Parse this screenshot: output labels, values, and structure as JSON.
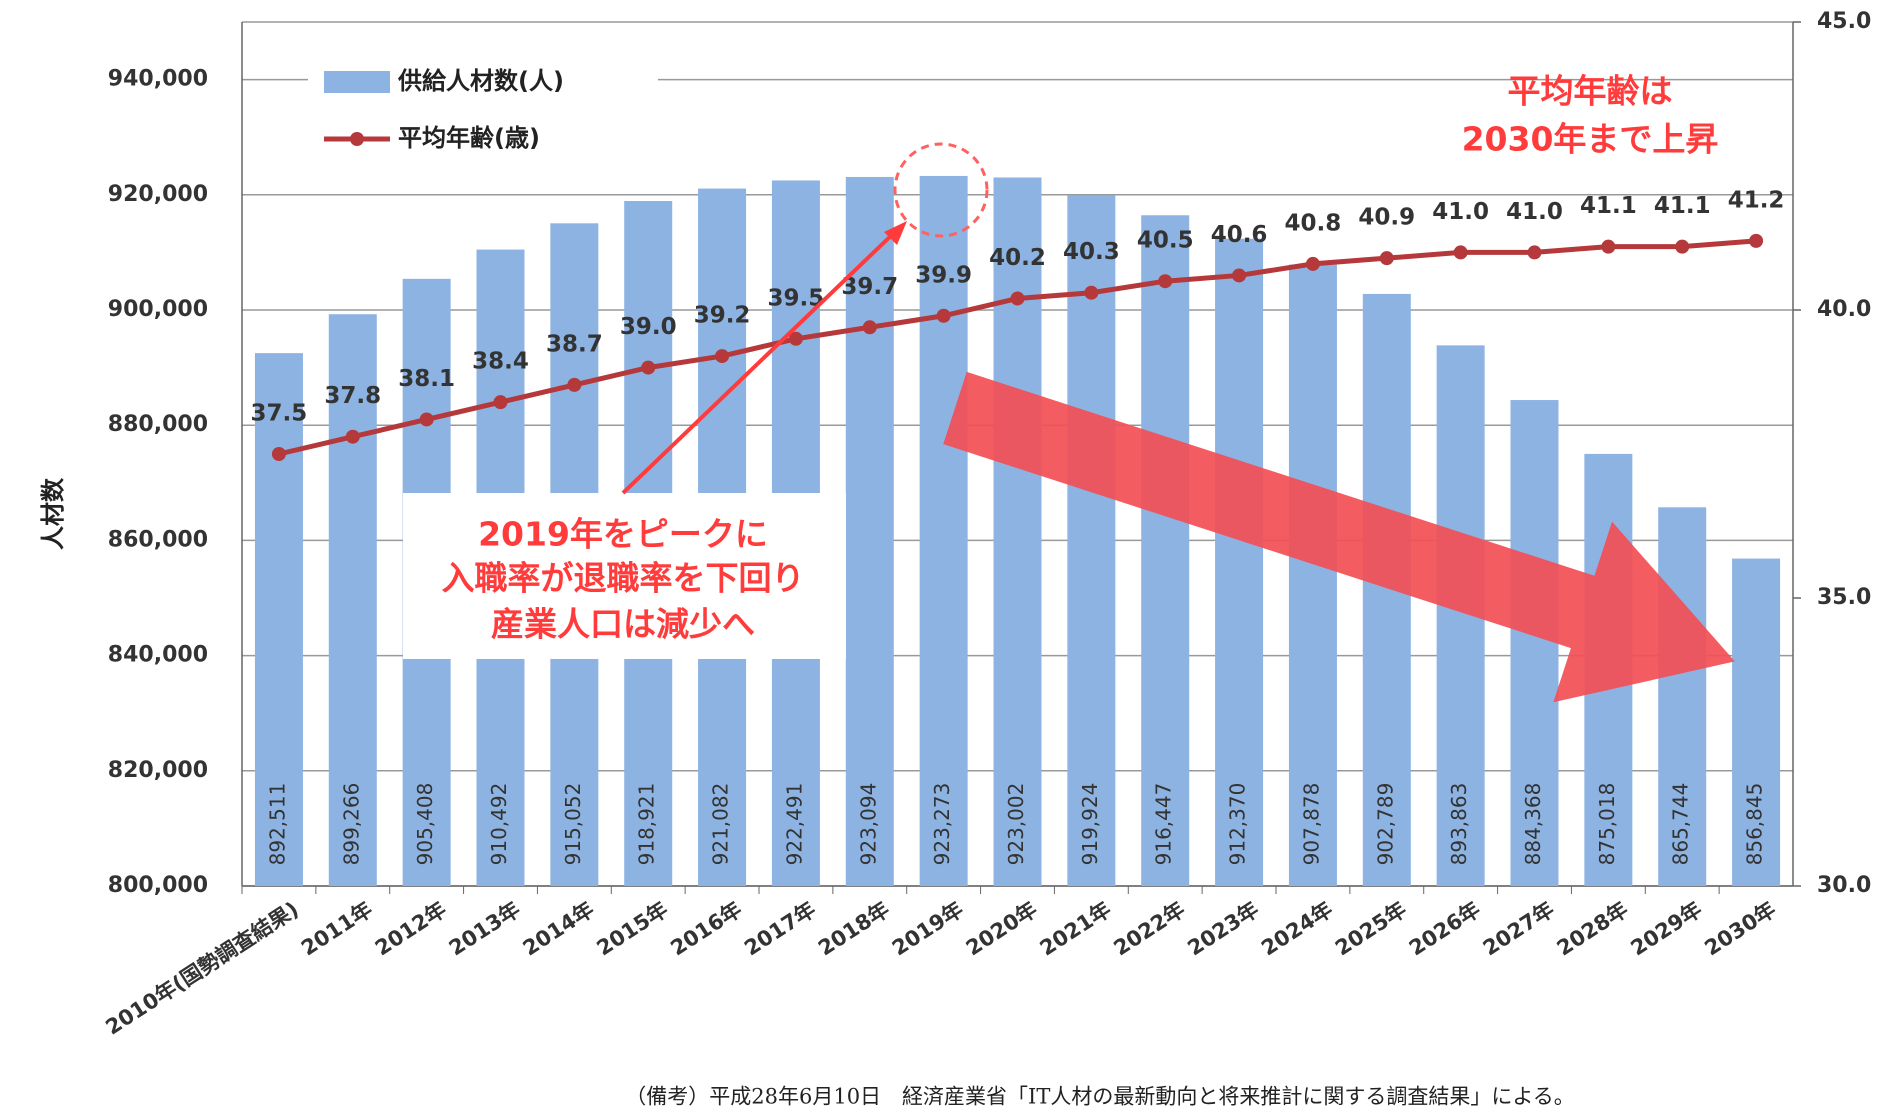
{
  "chart_data": {
    "type": "bar-line",
    "y_label": "人材数",
    "categories": [
      "2010年(国勢調査結果)",
      "2011年",
      "2012年",
      "2013年",
      "2014年",
      "2015年",
      "2016年",
      "2017年",
      "2018年",
      "2019年",
      "2020年",
      "2021年",
      "2022年",
      "2023年",
      "2024年",
      "2025年",
      "2026年",
      "2027年",
      "2028年",
      "2029年",
      "2030年"
    ],
    "series": [
      {
        "name": "供給人材数(人)",
        "type": "bar",
        "color": "#8db3e2",
        "values": [
          892511,
          899266,
          905408,
          910492,
          915052,
          918921,
          921082,
          922491,
          923094,
          923273,
          923002,
          919924,
          916447,
          912370,
          907878,
          902789,
          893863,
          884368,
          875018,
          865744,
          856845
        ],
        "value_labels": [
          "892,511",
          "899,266",
          "905,408",
          "910,492",
          "915,052",
          "918,921",
          "921,082",
          "922,491",
          "923,094",
          "923,273",
          "923,002",
          "919,924",
          "916,447",
          "912,370",
          "907,878",
          "902,789",
          "893,863",
          "884,368",
          "875,018",
          "865,744",
          "856,845"
        ]
      },
      {
        "name": "平均年齢(歳)",
        "type": "line",
        "axis": "y2",
        "color": "#b5393b",
        "values": [
          37.5,
          37.8,
          38.1,
          38.4,
          38.7,
          39.0,
          39.2,
          39.5,
          39.7,
          39.9,
          40.2,
          40.3,
          40.5,
          40.6,
          40.8,
          40.9,
          41.0,
          41.0,
          41.1,
          41.1,
          41.2
        ],
        "value_labels": [
          "37.5",
          "37.8",
          "38.1",
          "38.4",
          "38.7",
          "39.0",
          "39.2",
          "39.5",
          "39.7",
          "39.9",
          "40.2",
          "40.3",
          "40.5",
          "40.6",
          "40.8",
          "40.9",
          "41.0",
          "41.0",
          "41.1",
          "41.1",
          "41.2"
        ]
      }
    ],
    "ylim": [
      800000,
      950000
    ],
    "yticks": [
      {
        "value": 800000,
        "label": "800,000"
      },
      {
        "value": 820000,
        "label": "820,000"
      },
      {
        "value": 840000,
        "label": "840,000"
      },
      {
        "value": 860000,
        "label": "860,000"
      },
      {
        "value": 880000,
        "label": "880,000"
      },
      {
        "value": 900000,
        "label": "900,000"
      },
      {
        "value": 920000,
        "label": "920,000"
      },
      {
        "value": 940000,
        "label": "940,000"
      }
    ],
    "y2lim": [
      30,
      45
    ],
    "y2ticks": [
      {
        "value": 30,
        "label": "30.0"
      },
      {
        "value": 35,
        "label": "35.0"
      },
      {
        "value": 40,
        "label": "40.0"
      },
      {
        "value": 45,
        "label": "45.0"
      }
    ],
    "grid": true,
    "legend": "top-left",
    "annotations": [
      "平均年齢は",
      "2030年まで上昇",
      "2019年をピークに",
      "入職率が退職率を下回り",
      "産業人口は減少へ"
    ],
    "footnote": "（備考）平成28年6月10日　経済産業省「IT人材の最新動向と将来推計に関する調査結果」による。"
  }
}
